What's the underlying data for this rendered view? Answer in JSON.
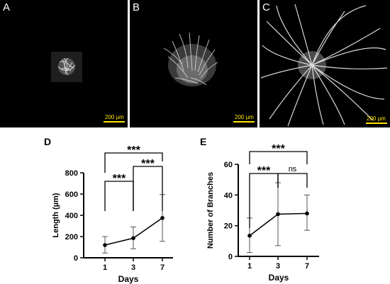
{
  "panels": [
    {
      "letter": "A",
      "scale_label": "200 µm"
    },
    {
      "letter": "B",
      "scale_label": "200 µm"
    },
    {
      "letter": "C",
      "scale_label": "200 µm"
    }
  ],
  "chart_data": [
    {
      "type": "line",
      "panel_letter": "D",
      "x": [
        "1",
        "3",
        "7"
      ],
      "values": [
        120,
        185,
        375
      ],
      "error_low": [
        45,
        85,
        155
      ],
      "error_high": [
        200,
        290,
        595
      ],
      "xlabel": "Days",
      "ylabel": "Length (µm)",
      "ylim": [
        0,
        800
      ],
      "yticks": [
        "0",
        "200",
        "400",
        "600",
        "800"
      ],
      "significance": [
        {
          "from": "1",
          "to": "3",
          "label": "***"
        },
        {
          "from": "3",
          "to": "7",
          "label": "***"
        },
        {
          "from": "1",
          "to": "7",
          "label": "***"
        }
      ]
    },
    {
      "type": "line",
      "panel_letter": "E",
      "x": [
        "1",
        "3",
        "7"
      ],
      "values": [
        13.5,
        27.5,
        28
      ],
      "error_low": [
        2.5,
        7,
        17
      ],
      "error_high": [
        25,
        48,
        40
      ],
      "xlabel": "Days",
      "ylabel": "Number of Branches",
      "ylim": [
        0,
        60
      ],
      "yticks": [
        "0",
        "20",
        "40",
        "60"
      ],
      "significance": [
        {
          "from": "1",
          "to": "3",
          "label": "***"
        },
        {
          "from": "3",
          "to": "7",
          "label": "ns"
        },
        {
          "from": "1",
          "to": "7",
          "label": "***"
        }
      ]
    }
  ]
}
